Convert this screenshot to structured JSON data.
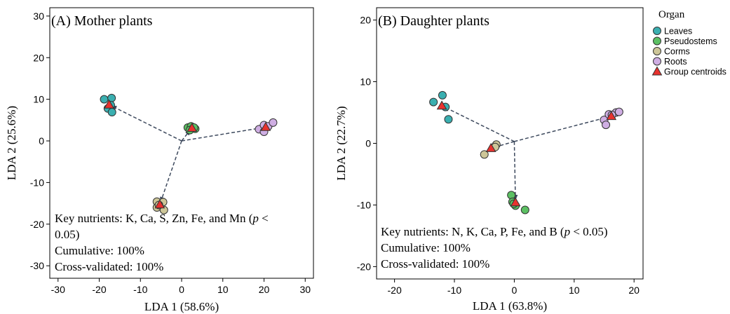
{
  "legend": {
    "title": "Organ",
    "items": [
      {
        "label": "Leaves",
        "color": "#3aafb0",
        "shape": "circle"
      },
      {
        "label": "Pseudostems",
        "color": "#5cc063",
        "shape": "circle"
      },
      {
        "label": "Corms",
        "color": "#cdc698",
        "shape": "circle"
      },
      {
        "label": "Roots",
        "color": "#cfaee3",
        "shape": "circle"
      },
      {
        "label": "Group centroids",
        "color": "#e8322e",
        "shape": "triangle"
      }
    ]
  },
  "chart_data": [
    {
      "type": "scatter",
      "title": "(A) Mother plants",
      "xlabel": "LDA 1 (58.6%)",
      "ylabel": "LDA 2 (25.6%)",
      "xlim": [
        -32,
        32
      ],
      "ylim": [
        -33,
        32
      ],
      "xticks": [
        -30,
        -20,
        -10,
        0,
        10,
        20,
        30
      ],
      "yticks": [
        -30,
        -20,
        -10,
        0,
        10,
        20,
        30
      ],
      "origin": [
        0,
        0
      ],
      "note_lines": [
        [
          {
            "t": "Key nutrients: K, Ca, S, Zn, Fe, and Mn ("
          },
          {
            "t": "p",
            "i": true
          },
          {
            "t": " <"
          }
        ],
        [
          {
            "t": "0.05)"
          }
        ],
        [
          {
            "t": "Cumulative: 100%"
          }
        ],
        [
          {
            "t": "Cross-validated: 100%"
          }
        ]
      ],
      "series": [
        {
          "name": "Leaves",
          "color": "#3aafb0",
          "points": [
            [
              -18.8,
              10.0
            ],
            [
              -17.0,
              10.3
            ],
            [
              -17.2,
              8.6
            ],
            [
              -17.9,
              7.8
            ],
            [
              -16.9,
              6.9
            ]
          ],
          "centroid": [
            -17.6,
            8.7
          ]
        },
        {
          "name": "Pseudostems",
          "color": "#5cc063",
          "points": [
            [
              1.5,
              3.2
            ],
            [
              2.3,
              3.5
            ],
            [
              3.3,
              2.9
            ],
            [
              2.0,
              2.6
            ],
            [
              3.0,
              3.2
            ]
          ],
          "centroid": [
            2.5,
            3.1
          ]
        },
        {
          "name": "Corms",
          "color": "#cdc698",
          "points": [
            [
              -6.0,
              -14.6
            ],
            [
              -4.5,
              -14.7
            ],
            [
              -6.0,
              -16.0
            ],
            [
              -4.3,
              -16.6
            ],
            [
              -5.5,
              -15.4
            ]
          ],
          "centroid": [
            -5.3,
            -15.3
          ]
        },
        {
          "name": "Roots",
          "color": "#cfaee3",
          "points": [
            [
              18.8,
              2.8
            ],
            [
              20.0,
              3.8
            ],
            [
              21.0,
              3.5
            ],
            [
              22.2,
              4.4
            ],
            [
              20.0,
              2.2
            ]
          ],
          "centroid": [
            20.4,
            3.3
          ]
        }
      ]
    },
    {
      "type": "scatter",
      "title": "(B) Daughter plants",
      "xlabel": "LDA 1 (63.8%)",
      "ylabel": "LDA 2 (22.7%)",
      "xlim": [
        -23,
        21.5
      ],
      "ylim": [
        -22,
        22
      ],
      "xticks": [
        -20,
        -10,
        0,
        10,
        20
      ],
      "yticks": [
        -20,
        -10,
        0,
        10,
        20
      ],
      "origin": [
        0,
        0.3
      ],
      "note_lines": [
        [
          {
            "t": "Key nutrients: N, K, Ca, P, Fe, and B ("
          },
          {
            "t": "p",
            "i": true
          },
          {
            "t": " < 0.05)"
          }
        ],
        [
          {
            "t": "Cumulative: 100%"
          }
        ],
        [
          {
            "t": "Cross-validated: 100%"
          }
        ]
      ],
      "series": [
        {
          "name": "Leaves",
          "color": "#3aafb0",
          "points": [
            [
              -12.0,
              7.8
            ],
            [
              -13.5,
              6.7
            ],
            [
              -11.5,
              5.9
            ],
            [
              -11.0,
              3.9
            ]
          ],
          "centroid": [
            -12.1,
            6.1
          ]
        },
        {
          "name": "Pseudostems",
          "color": "#5cc063",
          "points": [
            [
              -0.5,
              -8.4
            ],
            [
              -0.3,
              -9.5
            ],
            [
              0.2,
              -10.1
            ],
            [
              -0.1,
              -9.8
            ],
            [
              1.8,
              -10.8
            ]
          ],
          "centroid": [
            0.2,
            -9.6
          ]
        },
        {
          "name": "Corms",
          "color": "#cdc698",
          "points": [
            [
              -5.0,
              -1.8
            ],
            [
              -3.5,
              -0.7
            ],
            [
              -3.0,
              -0.2
            ],
            [
              -3.2,
              -0.6
            ]
          ],
          "centroid": [
            -3.9,
            -0.8
          ]
        },
        {
          "name": "Roots",
          "color": "#cfaee3",
          "points": [
            [
              15.0,
              3.8
            ],
            [
              15.3,
              3.0
            ],
            [
              15.8,
              4.7
            ],
            [
              17.0,
              5.0
            ],
            [
              17.5,
              5.1
            ],
            [
              16.3,
              4.6
            ]
          ],
          "centroid": [
            16.2,
            4.4
          ]
        }
      ]
    }
  ]
}
